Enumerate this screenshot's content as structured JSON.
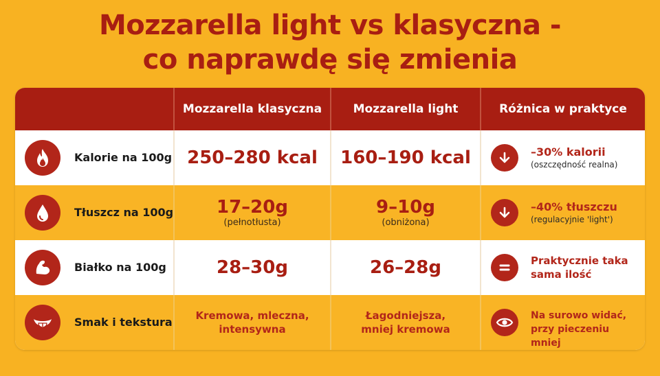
{
  "title": {
    "line1": "Mozzarella light vs klasyczna -",
    "line2": "co naprawdę się zmienia"
  },
  "header": {
    "col1": "",
    "col2": "Mozzarella klasyczna",
    "col3": "Mozzarella light",
    "col4": "Różnica w praktyce"
  },
  "rows": [
    {
      "icon": "flame-icon",
      "label": "Kalorie na 100g",
      "classic": "250–280 kcal",
      "classic_note": "",
      "light": "160–190 kcal",
      "light_note": "",
      "diff_icon": "arrow-down-icon",
      "diff_main": "–30% kalorii",
      "diff_sub": "(oszczędność realna)"
    },
    {
      "icon": "drop-icon",
      "label": "Tłuszcz na 100g",
      "classic": "17–20g",
      "classic_note": "(pełnotłusta)",
      "light": "9–10g",
      "light_note": "(obniżona)",
      "diff_icon": "arrow-down-icon",
      "diff_main": "–40% tłuszczu",
      "diff_sub": "(regulacyjnie 'light')"
    },
    {
      "icon": "muscle-icon",
      "label": "Białko na 100g",
      "classic": "28–30g",
      "classic_note": "",
      "light": "26–28g",
      "light_note": "",
      "diff_icon": "equals-icon",
      "diff_main": "Praktycznie taka sama ilość",
      "diff_sub": ""
    },
    {
      "icon": "tongue-icon",
      "label": "Smak i tekstura",
      "classic": "Kremowa, mleczna, intensywna",
      "classic_note": "",
      "light": "Łagodniejsza, mniej kremowa",
      "light_note": "",
      "diff_icon": "eye-icon",
      "diff_main": "Na surowo widać, przy pieczeniu mniej",
      "diff_sub": ""
    }
  ],
  "colors": {
    "background": "#f8b222",
    "accent": "#a81e12",
    "row_white": "#ffffff",
    "row_yellow": "#f9b425"
  }
}
